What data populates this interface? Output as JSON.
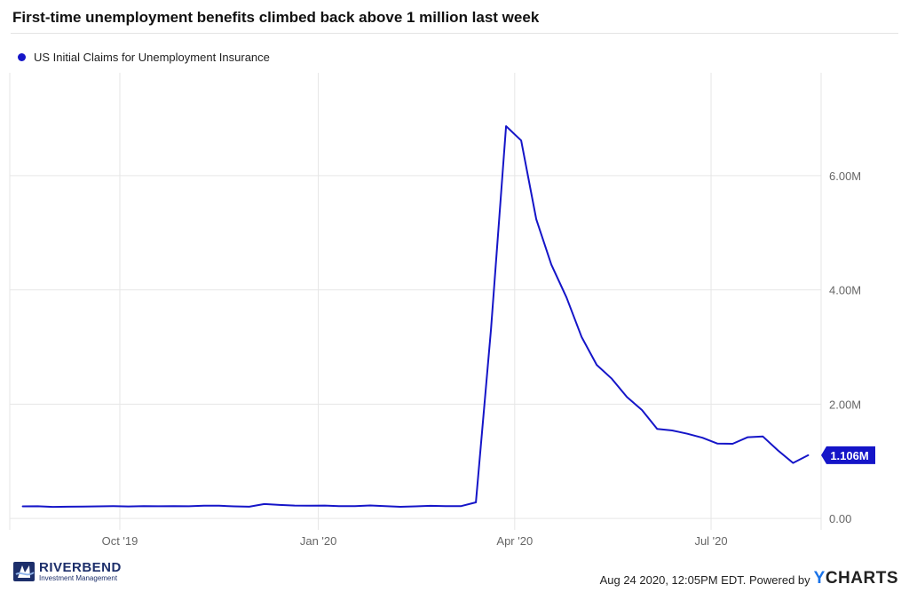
{
  "title": "First-time unemployment benefits climbed back above 1 million last week",
  "colors": {
    "series": "#1515c8",
    "grid": "#e6e6e6",
    "text": "#666666",
    "brand": "#1d2f6b",
    "ycharts_accent": "#1a73e8"
  },
  "footer": {
    "timestamp": "Aug 24 2020, 12:05PM EDT.",
    "powered_by": "Powered by",
    "brand_y": "Y",
    "brand_rest": "CHARTS",
    "logo_name": "RIVERBEND",
    "logo_sub": "Investment Management"
  },
  "chart_data": {
    "type": "line",
    "title": "First-time unemployment benefits climbed back above 1 million last week",
    "xlabel": "",
    "ylabel": "",
    "x_ticks": [
      "Oct '19",
      "Jan '20",
      "Apr '20",
      "Jul '20"
    ],
    "y_ticks": [
      "0.00",
      "2.00M",
      "4.00M",
      "6.00M"
    ],
    "y_tick_values": [
      0,
      2000000,
      4000000,
      6000000
    ],
    "ylim": [
      -200000,
      7800000
    ],
    "xlim": [
      "2019-08-11",
      "2020-08-21"
    ],
    "grid": true,
    "legend_position": "top-left",
    "last_value_label": "1.106M",
    "series": [
      {
        "name": "US Initial Claims for Unemployment Insurance",
        "x": [
          "2019-08-17",
          "2019-08-24",
          "2019-08-31",
          "2019-09-07",
          "2019-09-14",
          "2019-09-21",
          "2019-09-28",
          "2019-10-05",
          "2019-10-12",
          "2019-10-19",
          "2019-10-26",
          "2019-11-02",
          "2019-11-09",
          "2019-11-16",
          "2019-11-23",
          "2019-11-30",
          "2019-12-07",
          "2019-12-14",
          "2019-12-21",
          "2019-12-28",
          "2020-01-04",
          "2020-01-11",
          "2020-01-18",
          "2020-01-25",
          "2020-02-01",
          "2020-02-08",
          "2020-02-15",
          "2020-02-22",
          "2020-02-29",
          "2020-03-07",
          "2020-03-14",
          "2020-03-21",
          "2020-03-28",
          "2020-04-04",
          "2020-04-11",
          "2020-04-18",
          "2020-04-25",
          "2020-05-02",
          "2020-05-09",
          "2020-05-16",
          "2020-05-23",
          "2020-05-30",
          "2020-06-06",
          "2020-06-13",
          "2020-06-20",
          "2020-06-27",
          "2020-07-04",
          "2020-07-11",
          "2020-07-18",
          "2020-07-25",
          "2020-08-01",
          "2020-08-08",
          "2020-08-15"
        ],
        "values": [
          211000,
          213000,
          203000,
          205000,
          209000,
          212000,
          215000,
          210000,
          217000,
          213000,
          216000,
          213000,
          222000,
          223000,
          211000,
          206000,
          252000,
          237000,
          225000,
          224000,
          225000,
          214000,
          215000,
          227000,
          217000,
          204000,
          211000,
          221000,
          217000,
          215000,
          282000,
          3307000,
          6867000,
          6615000,
          5237000,
          4442000,
          3867000,
          3176000,
          2687000,
          2446000,
          2126000,
          1897000,
          1566000,
          1540000,
          1482000,
          1413000,
          1310000,
          1307000,
          1422000,
          1434000,
          1191000,
          971000,
          1106000
        ]
      }
    ]
  }
}
